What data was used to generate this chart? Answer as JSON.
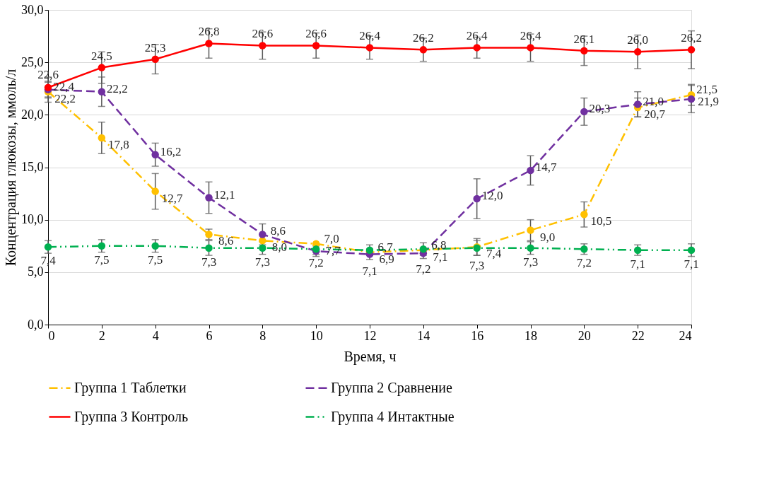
{
  "chart_data": {
    "type": "line",
    "xlabel": "Время, ч",
    "ylabel": "Концентрация глюкозы, ммоль/л",
    "x": [
      0,
      2,
      4,
      6,
      8,
      10,
      12,
      14,
      16,
      18,
      20,
      22,
      24
    ],
    "xlim": [
      0,
      24
    ],
    "xticks": [
      0,
      2,
      4,
      6,
      8,
      10,
      12,
      14,
      16,
      18,
      20,
      22,
      24
    ],
    "ylim": [
      0,
      30
    ],
    "yticks": [
      {
        "value": 0,
        "label": "0,0"
      },
      {
        "value": 5,
        "label": "5,0"
      },
      {
        "value": 10,
        "label": "10,0"
      },
      {
        "value": 15,
        "label": "15,0"
      },
      {
        "value": 20,
        "label": "20,0"
      },
      {
        "value": 25,
        "label": "25,0"
      },
      {
        "value": 30,
        "label": "30,0"
      }
    ],
    "grid": "y",
    "legend": "bottom",
    "marker": "circle",
    "series": [
      {
        "name": "Группа 1 Таблетки",
        "color": "#ffc000",
        "line_style": "dashdot",
        "values": [
          22.2,
          17.8,
          12.7,
          8.6,
          8.0,
          7.7,
          6.9,
          7.1,
          7.4,
          9.0,
          10.5,
          20.7,
          21.9
        ],
        "errors": [
          1.0,
          1.5,
          1.7,
          0.5,
          null,
          null,
          null,
          null,
          0.8,
          1.0,
          1.2,
          0.9,
          1.0
        ],
        "value_labels": [
          "22,2",
          "17,8",
          "12,7",
          "8,6",
          "8,0",
          "7,7",
          "6,9",
          "7,1",
          "7,4",
          "9,0",
          "10,5",
          "20,7",
          "21,9"
        ]
      },
      {
        "name": "Группа 2 Сравнение",
        "color": "#7030a0",
        "line_style": "dashed",
        "values": [
          22.4,
          22.2,
          16.2,
          12.1,
          8.6,
          7.0,
          6.7,
          6.8,
          12.0,
          14.7,
          20.3,
          21.0,
          21.5
        ],
        "errors": [
          0.7,
          1.4,
          1.1,
          1.5,
          1.0,
          0.5,
          0.5,
          0.5,
          1.9,
          1.4,
          1.3,
          1.2,
          1.3
        ],
        "value_labels": [
          "22,4",
          "22,2",
          "16,2",
          "12,1",
          "8,6",
          "7,0",
          "6,7",
          "6,8",
          "12,0",
          "14,7",
          "20,3",
          "21,0",
          "21,5"
        ]
      },
      {
        "name": "Группа 3 Контроль",
        "color": "#ff0000",
        "line_style": "solid",
        "values": [
          22.6,
          24.5,
          25.3,
          26.8,
          26.6,
          26.6,
          26.4,
          26.2,
          26.4,
          26.4,
          26.1,
          26.0,
          26.2
        ],
        "errors": [
          1.0,
          1.5,
          1.4,
          1.4,
          1.3,
          1.2,
          1.1,
          1.1,
          1.0,
          1.3,
          1.4,
          1.6,
          1.8
        ],
        "value_labels": [
          "22,6",
          "24,5",
          "25,3",
          "26,8",
          "26,6",
          "26,6",
          "26,4",
          "26,2",
          "26,4",
          "26,4",
          "26,1",
          "26,0",
          "26,2"
        ]
      },
      {
        "name": "Группа 4 Интактные",
        "color": "#00b050",
        "line_style": "dashdotdot",
        "values": [
          7.4,
          7.5,
          7.5,
          7.3,
          7.3,
          7.2,
          7.1,
          7.2,
          7.3,
          7.3,
          7.2,
          7.1,
          7.1
        ],
        "errors": [
          0.6,
          0.6,
          0.6,
          0.7,
          0.6,
          0.5,
          0.5,
          0.6,
          0.7,
          0.6,
          0.5,
          0.5,
          0.6
        ],
        "value_labels": [
          "7,4",
          "7,5",
          "7,5",
          "7,3",
          "7,3",
          "7,2",
          "7,1",
          "7,2",
          "7,3",
          "7,3",
          "7,2",
          "7,1",
          "7,1"
        ]
      }
    ]
  }
}
